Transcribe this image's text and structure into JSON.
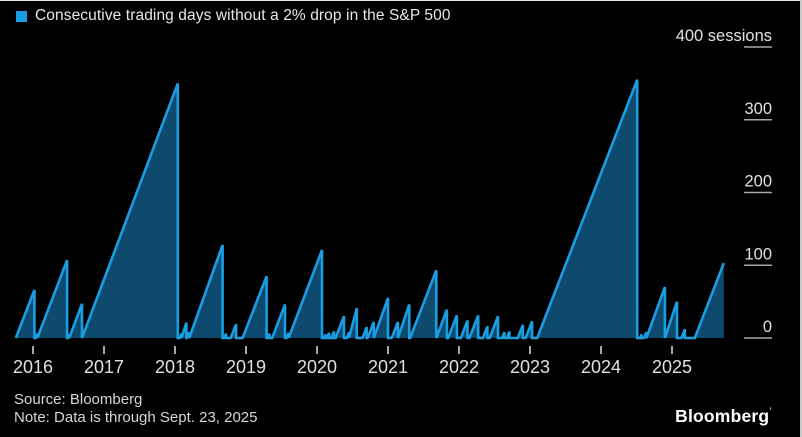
{
  "header": {
    "title": "Consecutive trading days without a 2% drop in the S&P 500"
  },
  "footer": {
    "source": "Source: Bloomberg",
    "note": "Note: Data is through Sept. 23, 2025",
    "logo": "Bloomberg",
    "logo_mark": "’"
  },
  "chart_data": {
    "type": "area",
    "title": "Consecutive trading days without a 2% drop in the S&P 500",
    "ylabel": "sessions",
    "legend_position": "top-left",
    "grid": false,
    "colors": {
      "line": "#1b9de2",
      "fill": "#0e4a6d",
      "label_text": "#e0e0e0",
      "tick_line": "#a8a8a8",
      "background": "#000000"
    },
    "x_axis": {
      "tick_years": [
        2016,
        2017,
        2018,
        2019,
        2020,
        2021,
        2022,
        2023,
        2024,
        2025
      ],
      "range": [
        2015.7,
        2025.78
      ]
    },
    "y_axis": {
      "ticks": [
        0,
        100,
        200,
        300,
        400
      ],
      "tick_labels": [
        "0",
        "100",
        "200",
        "300",
        "400 sessions"
      ],
      "range": [
        0,
        400
      ]
    },
    "sessions_per_year": 252,
    "streaks_note": "each entry = [decimal-year streak ended with a 2% drop, peak consecutive sessions reached]",
    "streaks": [
      [
        2016.02,
        66
      ],
      [
        2016.06,
        6
      ],
      [
        2016.48,
        107
      ],
      [
        2016.51,
        5
      ],
      [
        2016.69,
        47
      ],
      [
        2018.04,
        350
      ],
      [
        2018.09,
        6
      ],
      [
        2018.16,
        21
      ],
      [
        2018.2,
        8
      ],
      [
        2018.67,
        128
      ],
      [
        2018.72,
        6
      ],
      [
        2018.86,
        19
      ],
      [
        2019.29,
        85
      ],
      [
        2019.33,
        6
      ],
      [
        2019.55,
        46
      ],
      [
        2019.6,
        7
      ],
      [
        2020.07,
        121
      ],
      [
        2020.12,
        5
      ],
      [
        2020.17,
        7
      ],
      [
        2020.24,
        9
      ],
      [
        2020.38,
        30
      ],
      [
        2020.45,
        8
      ],
      [
        2020.56,
        41
      ],
      [
        2020.7,
        15
      ],
      [
        2020.8,
        22
      ],
      [
        2021.0,
        55
      ],
      [
        2021.14,
        22
      ],
      [
        2021.3,
        46
      ],
      [
        2021.68,
        93
      ],
      [
        2021.83,
        39
      ],
      [
        2021.97,
        31
      ],
      [
        2022.12,
        24
      ],
      [
        2022.27,
        31
      ],
      [
        2022.4,
        16
      ],
      [
        2022.55,
        30
      ],
      [
        2022.64,
        8
      ],
      [
        2022.71,
        9
      ],
      [
        2022.9,
        18
      ],
      [
        2023.03,
        23
      ],
      [
        2024.51,
        355
      ],
      [
        2024.57,
        5
      ],
      [
        2024.64,
        8
      ],
      [
        2024.9,
        70
      ],
      [
        2025.07,
        50
      ],
      [
        2025.18,
        12
      ],
      [
        2025.73,
        103
      ]
    ],
    "final_streak_ongoing": true
  }
}
